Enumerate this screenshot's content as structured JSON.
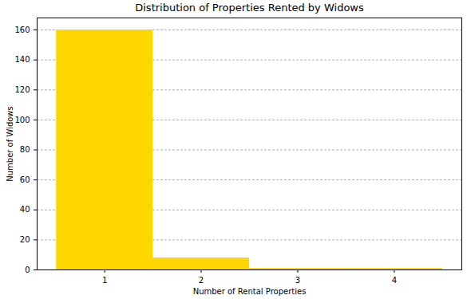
{
  "chart_data": {
    "type": "histogram",
    "title": "Distribution of Properties Rented by Widows",
    "x_label": "Number of Rental Properties",
    "y_label": "Number of Widows",
    "bins": [
      0.5,
      1.5,
      2.5,
      3.5,
      4.5
    ],
    "values": [
      160,
      8,
      1,
      1
    ],
    "color": "#FFD700",
    "xlim": [
      0.3,
      4.7
    ],
    "xticks": [
      1,
      2,
      3,
      4
    ],
    "ylim": [
      0,
      168
    ],
    "yticks": [
      0,
      20,
      40,
      60,
      80,
      100,
      120,
      140,
      160
    ],
    "grid": true
  }
}
